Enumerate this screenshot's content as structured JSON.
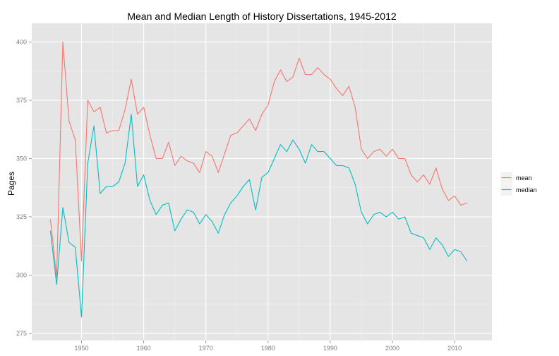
{
  "chart_data": {
    "type": "line",
    "title": "Mean and Median Length of History Dissertations, 1945-2012",
    "xlabel": "",
    "ylabel": "Pages",
    "xlim": [
      1942,
      2016
    ],
    "ylim": [
      272,
      408
    ],
    "x_ticks": [
      1950,
      1960,
      1970,
      1980,
      1990,
      2000,
      2010
    ],
    "x_tick_labels": [
      "1950",
      "1960",
      "1970",
      "1980",
      "1990",
      "2000",
      "2010"
    ],
    "y_ticks": [
      275,
      300,
      325,
      350,
      375,
      400
    ],
    "y_tick_labels": [
      "275",
      "300",
      "325",
      "350",
      "375",
      "400"
    ],
    "grid": true,
    "legend_position": "right",
    "x": [
      1945,
      1946,
      1947,
      1948,
      1949,
      1950,
      1951,
      1952,
      1953,
      1954,
      1955,
      1956,
      1957,
      1958,
      1959,
      1960,
      1961,
      1962,
      1963,
      1964,
      1965,
      1966,
      1967,
      1968,
      1969,
      1970,
      1971,
      1972,
      1973,
      1974,
      1975,
      1976,
      1977,
      1978,
      1979,
      1980,
      1981,
      1982,
      1983,
      1984,
      1985,
      1986,
      1987,
      1988,
      1989,
      1990,
      1991,
      1992,
      1993,
      1994,
      1995,
      1996,
      1997,
      1998,
      1999,
      2000,
      2001,
      2002,
      2003,
      2004,
      2005,
      2006,
      2007,
      2008,
      2009,
      2010,
      2011,
      2012
    ],
    "series": [
      {
        "name": "mean",
        "color": "#F8766D",
        "values": [
          324,
          299,
          400,
          366,
          358,
          306,
          375,
          370,
          372,
          361,
          362,
          362,
          371,
          384,
          369,
          372,
          360,
          350,
          350,
          357,
          347,
          351,
          349,
          348,
          344,
          353,
          351,
          344,
          352,
          360,
          361,
          364,
          367,
          362,
          369,
          373,
          383,
          388,
          383,
          385,
          393,
          386,
          386,
          389,
          386,
          384,
          380,
          377,
          381,
          372,
          354,
          350,
          353,
          354,
          351,
          354,
          350,
          350,
          343,
          340,
          343,
          339,
          346,
          337,
          332,
          334,
          330,
          331
        ]
      },
      {
        "name": "median",
        "color": "#00BFC4",
        "values": [
          319,
          296,
          329,
          314,
          312,
          282,
          348,
          364,
          335,
          338,
          338,
          340,
          348,
          369,
          338,
          343,
          332,
          326,
          330,
          331,
          319,
          324,
          328,
          327,
          322,
          326,
          323,
          318,
          326,
          331,
          334,
          338,
          341,
          328,
          342,
          344,
          350,
          356,
          353,
          358,
          354,
          348,
          356,
          353,
          353,
          350,
          347,
          347,
          346,
          339,
          327,
          322,
          326,
          327,
          325,
          327,
          324,
          325,
          318,
          317,
          316,
          311,
          316,
          313,
          308,
          311,
          310,
          306
        ]
      }
    ]
  }
}
